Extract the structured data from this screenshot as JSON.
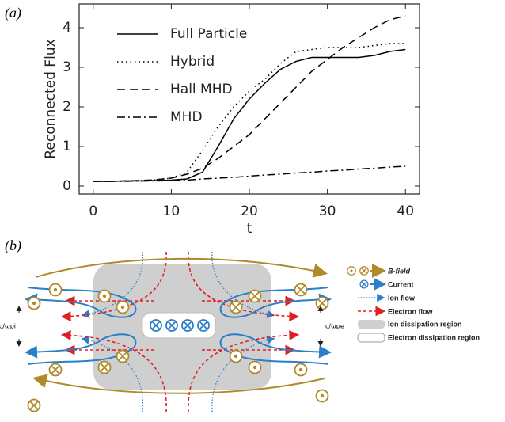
{
  "panels": [
    "(a)",
    "(b)"
  ],
  "chart_data": {
    "type": "line",
    "xlabel": "t",
    "ylabel": "Reconnected Flux",
    "x": [
      0,
      2,
      4,
      6,
      8,
      10,
      12,
      14,
      16,
      18,
      20,
      22,
      24,
      26,
      28,
      30,
      32,
      34,
      36,
      38,
      40
    ],
    "series": [
      {
        "name": "Full Particle",
        "color": "#000000",
        "style": "solid",
        "values": [
          0.12,
          0.12,
          0.13,
          0.13,
          0.14,
          0.15,
          0.18,
          0.35,
          1.0,
          1.7,
          2.2,
          2.6,
          2.95,
          3.15,
          3.25,
          3.25,
          3.25,
          3.25,
          3.3,
          3.4,
          3.45
        ]
      },
      {
        "name": "Hybrid",
        "color": "#000000",
        "style": "dotted",
        "values": [
          0.12,
          0.12,
          0.13,
          0.14,
          0.16,
          0.2,
          0.35,
          0.9,
          1.5,
          2.0,
          2.4,
          2.7,
          3.1,
          3.4,
          3.45,
          3.5,
          3.5,
          3.5,
          3.55,
          3.6,
          3.6
        ]
      },
      {
        "name": "Hall MHD",
        "color": "#000000",
        "style": "dashed",
        "values": [
          0.12,
          0.12,
          0.13,
          0.14,
          0.16,
          0.2,
          0.3,
          0.45,
          0.7,
          1.0,
          1.3,
          1.7,
          2.1,
          2.5,
          2.9,
          3.2,
          3.5,
          3.75,
          4.0,
          4.2,
          4.3
        ]
      },
      {
        "name": "MHD",
        "color": "#000000",
        "style": "dashdot",
        "values": [
          0.12,
          0.12,
          0.12,
          0.13,
          0.13,
          0.14,
          0.15,
          0.18,
          0.2,
          0.22,
          0.25,
          0.28,
          0.3,
          0.33,
          0.35,
          0.38,
          0.4,
          0.43,
          0.45,
          0.48,
          0.5
        ]
      }
    ],
    "xlim": [
      -1.8,
      41.8
    ],
    "ylim": [
      -0.2,
      4.6
    ],
    "xticks": [
      0,
      10,
      20,
      30,
      40
    ],
    "yticks": [
      0,
      1,
      2,
      3,
      4
    ]
  },
  "diagram": {
    "side_labels": [
      "c/ωpi",
      "c/ωpe"
    ],
    "legend": [
      "B-field",
      "Current",
      "Ion flow",
      "Electron flow",
      "Ion dissipation region",
      "Electron dissipation region"
    ]
  }
}
